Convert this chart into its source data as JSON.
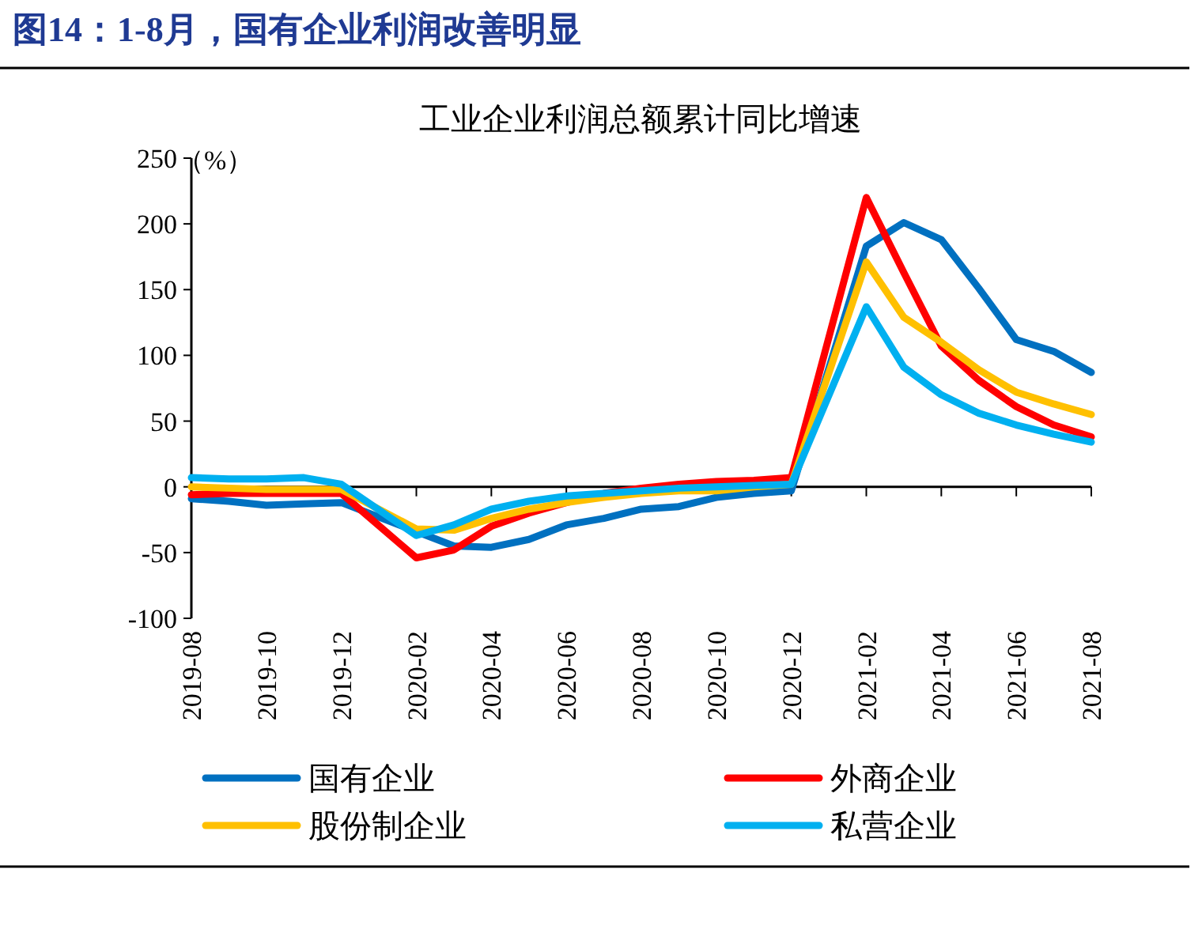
{
  "chart_data": {
    "type": "line",
    "title": "图14：1-8月，国有企业利润改善明显",
    "subtitle": "工业企业利润总额累计同比增速",
    "ylabel": "（%）",
    "x": [
      "2019-08",
      "2019-09",
      "2019-10",
      "2019-11",
      "2019-12",
      "2020-02",
      "2020-03",
      "2020-04",
      "2020-05",
      "2020-06",
      "2020-07",
      "2020-08",
      "2020-09",
      "2020-10",
      "2020-11",
      "2020-12",
      "2021-02",
      "2021-03",
      "2021-04",
      "2021-05",
      "2021-06",
      "2021-07",
      "2021-08"
    ],
    "series": [
      {
        "name": "国有企业",
        "color": "#0070c0",
        "values": [
          -9,
          -11,
          -14,
          -13,
          -12,
          -34,
          -45,
          -46,
          -40,
          -29,
          -24,
          -17,
          -15,
          -8,
          -5,
          -3,
          183,
          201,
          188,
          151,
          112,
          103,
          87
        ]
      },
      {
        "name": "外商企业",
        "color": "#ff0000",
        "values": [
          -6,
          -5,
          -5,
          -5,
          -5,
          -54,
          -48,
          -30,
          -20,
          -12,
          -5,
          -1,
          2,
          4,
          5,
          7,
          220,
          163,
          107,
          81,
          61,
          47,
          38
        ]
      },
      {
        "name": "股份制企业",
        "color": "#ffc000",
        "values": [
          0,
          -1,
          -2,
          -2,
          -2,
          -32,
          -33,
          -24,
          -17,
          -12,
          -8,
          -5,
          -3,
          -3,
          0,
          2,
          171,
          129,
          110,
          89,
          72,
          63,
          55
        ]
      },
      {
        "name": "私营企业",
        "color": "#00b0f0",
        "values": [
          7,
          6,
          6,
          7,
          2,
          -37,
          -29,
          -17,
          -11,
          -7,
          -5,
          -3,
          -1,
          0,
          1,
          2,
          137,
          91,
          70,
          56,
          47,
          40,
          34
        ]
      }
    ],
    "xlim": [
      "2019-08",
      "2021-08"
    ],
    "xticks": [
      "2019-08",
      "2019-10",
      "2019-12",
      "2020-02",
      "2020-04",
      "2020-06",
      "2020-08",
      "2020-10",
      "2020-12",
      "2021-02",
      "2021-04",
      "2021-06",
      "2021-08"
    ],
    "ylim": [
      -100,
      250
    ],
    "yticks": [
      -100,
      -50,
      0,
      50,
      100,
      150,
      200,
      250
    ],
    "legend": "bottom",
    "marker": "none",
    "line_style": "solid"
  }
}
